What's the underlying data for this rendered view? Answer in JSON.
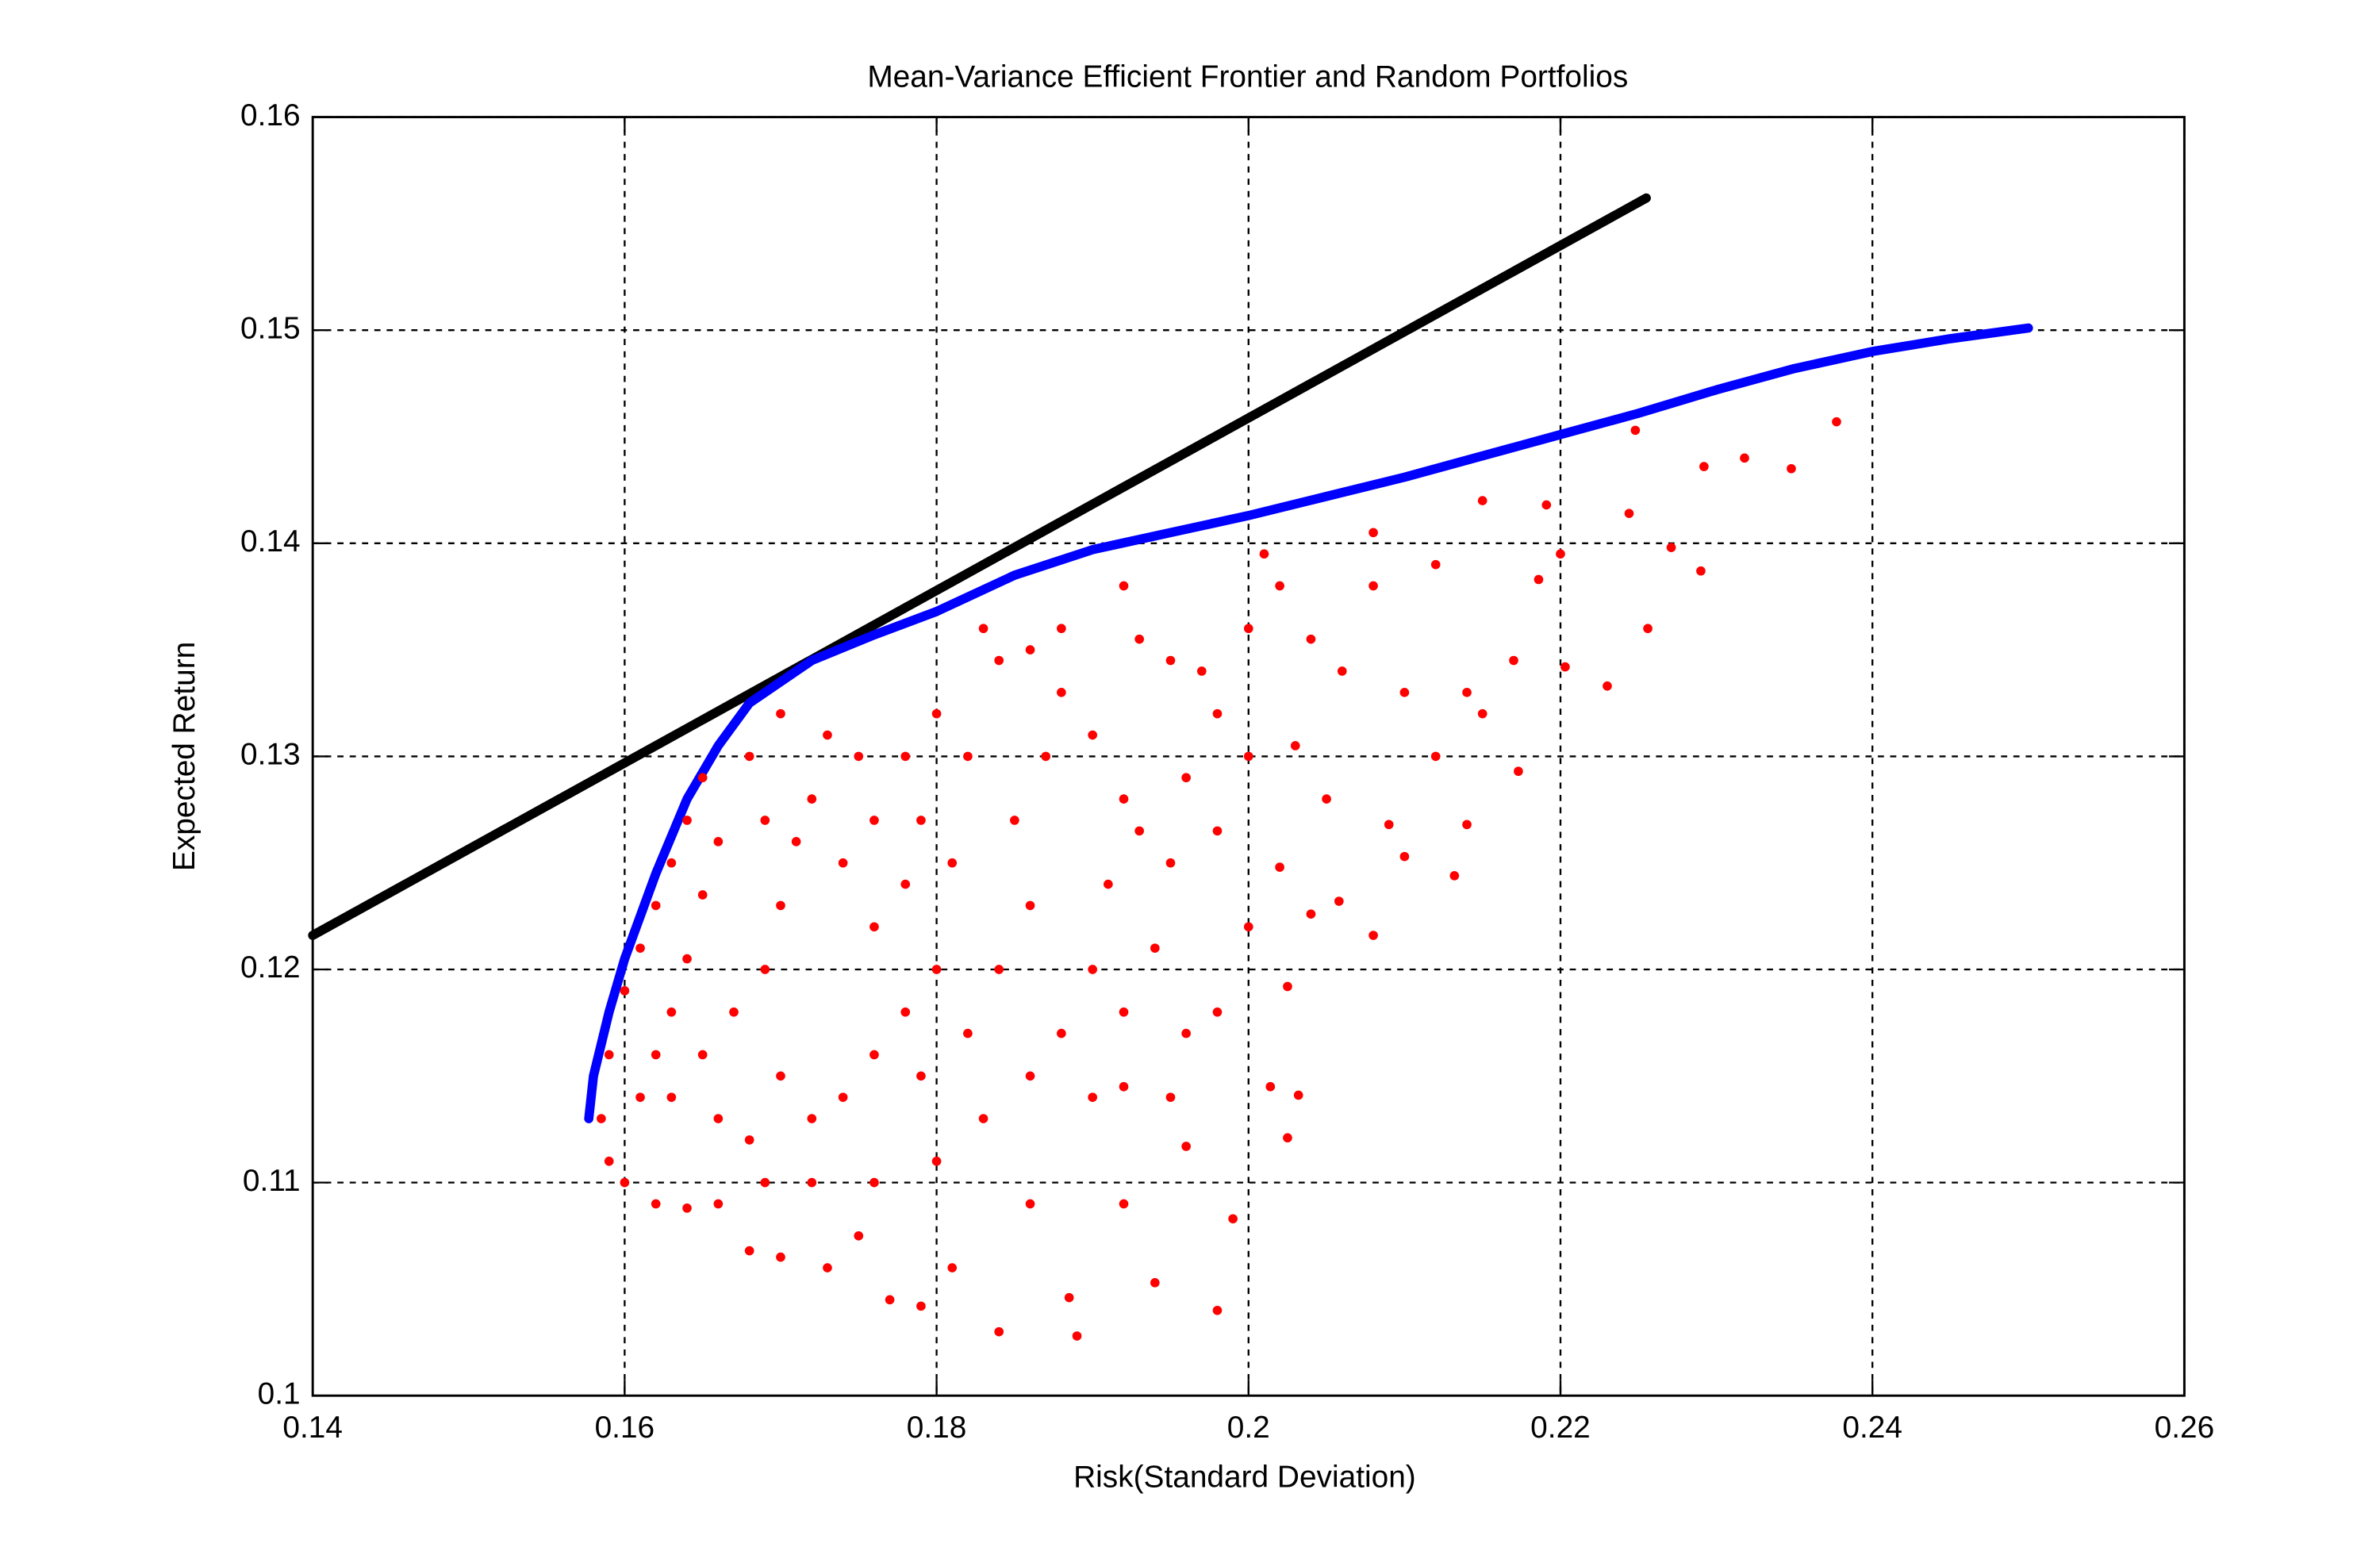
{
  "chart_data": {
    "type": "scatter",
    "title": "Mean-Variance Efficient Frontier and Random Portfolios",
    "xlabel": "Risk(Standard Deviation)",
    "ylabel": "Expected Return",
    "xlim": [
      0.14,
      0.26
    ],
    "ylim": [
      0.1,
      0.16
    ],
    "xticks": [
      0.14,
      0.16,
      0.18,
      0.2,
      0.22,
      0.24,
      0.26
    ],
    "yticks": [
      0.1,
      0.11,
      0.12,
      0.13,
      0.14,
      0.15,
      0.16
    ],
    "grid": true,
    "series": [
      {
        "color": "#000000",
        "mode": "line",
        "x": [
          0.14,
          0.2255
        ],
        "values": [
          0.1216,
          0.1562
        ]
      },
      {
        "color": "#0000ff",
        "mode": "line",
        "x": [
          0.1577,
          0.158,
          0.159,
          0.16,
          0.162,
          0.164,
          0.166,
          0.168,
          0.172,
          0.176,
          0.18,
          0.185,
          0.19,
          0.195,
          0.2,
          0.205,
          0.21,
          0.215,
          0.22,
          0.225,
          0.23,
          0.235,
          0.24,
          0.245,
          0.25
        ],
        "values": [
          0.113,
          0.115,
          0.118,
          0.1205,
          0.1245,
          0.128,
          0.1305,
          0.1325,
          0.1345,
          0.1357,
          0.1368,
          0.1385,
          0.1397,
          0.1405,
          0.1413,
          0.1422,
          0.1431,
          0.1441,
          0.1451,
          0.1461,
          0.1472,
          0.1482,
          0.149,
          0.1496,
          0.1501
        ]
      },
      {
        "color": "#ff0000",
        "mode": "markers",
        "x": [
          0.2377,
          0.2248,
          0.2348,
          0.2318,
          0.2292,
          0.2244,
          0.2191,
          0.2186,
          0.2271,
          0.229,
          0.2256,
          0.223,
          0.2203,
          0.217,
          0.215,
          0.2173,
          0.214,
          0.2132,
          0.209,
          0.21,
          0.2058,
          0.208,
          0.204,
          0.202,
          0.2025,
          0.2014,
          0.2032,
          0.2025,
          0.199,
          0.198,
          0.196,
          0.195,
          0.194,
          0.192,
          0.189,
          0.1885,
          0.186,
          0.184,
          0.181,
          0.179,
          0.177,
          0.175,
          0.173,
          0.17,
          0.168,
          0.166,
          0.164,
          0.162,
          0.16,
          0.159,
          0.1585,
          0.159,
          0.16,
          0.161,
          0.162,
          0.163,
          0.164,
          0.165,
          0.166,
          0.165,
          0.164,
          0.163,
          0.162,
          0.161,
          0.163,
          0.165,
          0.167,
          0.169,
          0.17,
          0.171,
          0.172,
          0.173,
          0.17,
          0.168,
          0.169,
          0.175,
          0.176,
          0.174,
          0.176,
          0.178,
          0.179,
          0.178,
          0.18,
          0.182,
          0.181,
          0.18,
          0.178,
          0.176,
          0.174,
          0.172,
          0.17,
          0.168,
          0.166,
          0.169,
          0.172,
          0.176,
          0.18,
          0.179,
          0.182,
          0.184,
          0.186,
          0.185,
          0.187,
          0.188,
          0.186,
          0.184,
          0.183,
          0.188,
          0.19,
          0.192,
          0.191,
          0.19,
          0.188,
          0.186,
          0.183,
          0.19,
          0.192,
          0.194,
          0.195,
          0.193,
          0.196,
          0.198,
          0.197,
          0.195,
          0.193,
          0.192,
          0.2,
          0.201,
          0.202,
          0.204,
          0.206,
          0.208,
          0.21,
          0.212,
          0.215,
          0.208,
          0.198,
          0.2,
          0.203,
          0.205,
          0.2,
          0.198,
          0.196,
          0.192,
          0.212,
          0.214,
          0.22
        ],
        "values": [
          0.1457,
          0.1453,
          0.1435,
          0.144,
          0.1436,
          0.1414,
          0.1418,
          0.1383,
          0.1398,
          0.1387,
          0.136,
          0.1333,
          0.1342,
          0.1345,
          0.132,
          0.1293,
          0.1268,
          0.1244,
          0.1268,
          0.1253,
          0.1232,
          0.1216,
          0.1226,
          0.1248,
          0.1192,
          0.1145,
          0.1141,
          0.1121,
          0.1083,
          0.104,
          0.1117,
          0.114,
          0.1053,
          0.1145,
          0.1028,
          0.1046,
          0.109,
          0.103,
          0.106,
          0.1042,
          0.1045,
          0.1075,
          0.106,
          0.1065,
          0.1068,
          0.109,
          0.1088,
          0.109,
          0.11,
          0.111,
          0.113,
          0.116,
          0.119,
          0.121,
          0.123,
          0.125,
          0.127,
          0.129,
          0.126,
          0.1235,
          0.1205,
          0.118,
          0.116,
          0.114,
          0.114,
          0.116,
          0.118,
          0.12,
          0.123,
          0.126,
          0.128,
          0.131,
          0.132,
          0.13,
          0.127,
          0.13,
          0.127,
          0.125,
          0.122,
          0.124,
          0.127,
          0.13,
          0.132,
          0.13,
          0.125,
          0.12,
          0.118,
          0.116,
          0.114,
          0.113,
          0.115,
          0.112,
          0.113,
          0.11,
          0.11,
          0.11,
          0.111,
          0.115,
          0.117,
          0.12,
          0.123,
          0.127,
          0.13,
          0.133,
          0.135,
          0.1345,
          0.136,
          0.136,
          0.131,
          0.128,
          0.124,
          0.12,
          0.117,
          0.115,
          0.113,
          0.114,
          0.118,
          0.121,
          0.125,
          0.1265,
          0.129,
          0.132,
          0.134,
          0.1345,
          0.1355,
          0.138,
          0.136,
          0.1395,
          0.138,
          0.1355,
          0.134,
          0.138,
          0.133,
          0.139,
          0.142,
          0.1405,
          0.1265,
          0.13,
          0.1305,
          0.128,
          0.122,
          0.118,
          0.117,
          0.109,
          0.13,
          0.133,
          0.1395
        ]
      }
    ]
  }
}
